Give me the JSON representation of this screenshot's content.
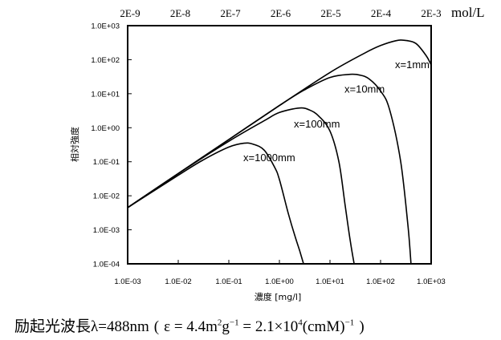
{
  "chart_data": {
    "type": "line",
    "title": "",
    "xlabel": "濃度 [mg/l]",
    "ylabel": "相対強度",
    "xscale": "log",
    "yscale": "log",
    "xlim": [
      0.001,
      1000
    ],
    "ylim": [
      0.0001,
      1000
    ],
    "x_ticks": [
      "1.0E-03",
      "1.0E-02",
      "1.0E-01",
      "1.0E+00",
      "1.0E+01",
      "1.0E+02",
      "1.0E+03"
    ],
    "y_ticks": [
      "1.0E+03",
      "1.0E+02",
      "1.0E+01",
      "1.0E+00",
      "1.0E-01",
      "1.0E-02",
      "1.0E-03",
      "1.0E-04"
    ],
    "top_axis": {
      "ticks": [
        "2E-9",
        "2E-8",
        "2E-7",
        "2E-6",
        "2E-5",
        "2E-4",
        "2E-3"
      ],
      "label": "mol/L"
    },
    "grid": false,
    "series": [
      {
        "name": "x=1mm",
        "x": [
          0.001,
          0.01,
          0.1,
          1,
          10,
          50,
          100,
          200,
          300,
          500,
          800,
          1000
        ],
        "y": [
          0.0045,
          0.045,
          0.45,
          4.5,
          42,
          160,
          260,
          360,
          370,
          300,
          130,
          70
        ]
      },
      {
        "name": "x=10mm",
        "x": [
          0.001,
          0.01,
          0.1,
          1,
          3,
          10,
          25,
          40,
          60,
          100,
          150,
          250,
          350,
          400
        ],
        "y": [
          0.0045,
          0.045,
          0.45,
          4.5,
          12.5,
          30,
          37,
          35,
          27,
          12,
          3.5,
          0.1,
          0.0012,
          0.0001
        ]
      },
      {
        "name": "x=100mm",
        "x": [
          0.001,
          0.01,
          0.1,
          0.5,
          1,
          2.5,
          4,
          6,
          10,
          15,
          20,
          25,
          30
        ],
        "y": [
          0.0045,
          0.045,
          0.4,
          1.6,
          2.8,
          3.8,
          3.3,
          2.2,
          0.8,
          0.1,
          0.005,
          0.0005,
          0.0001
        ]
      },
      {
        "name": "x=1000mm",
        "x": [
          0.001,
          0.01,
          0.03,
          0.1,
          0.2,
          0.3,
          0.5,
          0.8,
          1,
          1.5,
          2,
          2.5,
          3
        ],
        "y": [
          0.0045,
          0.04,
          0.11,
          0.27,
          0.35,
          0.33,
          0.22,
          0.07,
          0.03,
          0.003,
          0.0007,
          0.00025,
          0.0001
        ]
      }
    ]
  },
  "caption": {
    "label_jp": "励起光波長",
    "lambda_text": "λ=488nm",
    "paren_open": "(",
    "epsilon_eq": "ε = 4.4m",
    "eps_sup1": "2",
    "eps_g": "g",
    "eps_sup2": "−1",
    "eps_eq2": " = 2.1×10",
    "eps_sup3": "4",
    "eps_unit": "(cmM)",
    "eps_sup4": "−1",
    "paren_close": ")"
  }
}
